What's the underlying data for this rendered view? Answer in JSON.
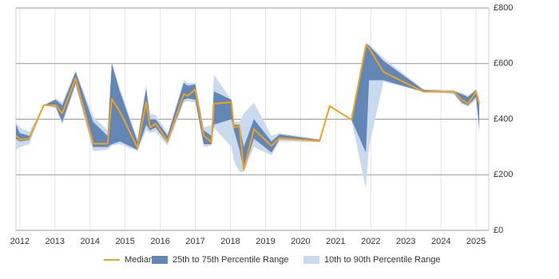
{
  "chart_data": {
    "type": "line-range",
    "x": [
      2011.89,
      2012.0,
      2012.27,
      2012.68,
      2013.02,
      2013.21,
      2013.59,
      2014.09,
      2014.5,
      2014.62,
      2014.85,
      2015.35,
      2015.6,
      2015.71,
      2015.87,
      2016.21,
      2016.67,
      2016.78,
      2017.0,
      2017.24,
      2017.46,
      2017.53,
      2018.03,
      2018.1,
      2018.26,
      2018.38,
      2018.67,
      2019.17,
      2019.4,
      2020.54,
      2020.83,
      2021.45,
      2021.86,
      2021.95,
      2022.36,
      2023.5,
      2024.36,
      2024.59,
      2024.77,
      2025.0,
      2025.09
    ],
    "series": [
      {
        "name": "Median",
        "color": "#f5a01a",
        "values": [
          341,
          327,
          330,
          450,
          450,
          421,
          547,
          312,
          312,
          473,
          427,
          298,
          461,
          370,
          384,
          321,
          490,
          484,
          507,
          341,
          318,
          456,
          461,
          370,
          375,
          218,
          364,
          304,
          332,
          321,
          447,
          398,
          665,
          656,
          570,
          499,
          499,
          470,
          456,
          499,
          456
        ]
      },
      {
        "name": "25th to 75th Percentile Range",
        "color": "#6286b6",
        "low": [
          330,
          320,
          325,
          450,
          445,
          390,
          530,
          300,
          300,
          310,
          320,
          290,
          380,
          360,
          370,
          315,
          470,
          475,
          470,
          310,
          310,
          380,
          400,
          360,
          290,
          215,
          330,
          280,
          328,
          320,
          447,
          398,
          280,
          540,
          540,
          499,
          495,
          460,
          450,
          480,
          370
        ],
        "high": [
          380,
          350,
          340,
          450,
          470,
          450,
          570,
          390,
          340,
          600,
          500,
          320,
          510,
          400,
          400,
          340,
          530,
          520,
          525,
          360,
          340,
          500,
          470,
          380,
          380,
          300,
          400,
          320,
          345,
          325,
          447,
          398,
          670,
          665,
          610,
          505,
          500,
          490,
          480,
          505,
          460
        ]
      },
      {
        "name": "10th to 90th Percentile Range",
        "color": "#c9daef",
        "low": [
          290,
          300,
          310,
          450,
          440,
          380,
          520,
          285,
          290,
          305,
          310,
          285,
          360,
          350,
          355,
          305,
          460,
          465,
          460,
          300,
          305,
          370,
          300,
          250,
          210,
          210,
          300,
          270,
          320,
          318,
          447,
          398,
          150,
          300,
          535,
          498,
          490,
          455,
          445,
          470,
          340
        ],
        "high": [
          390,
          370,
          355,
          450,
          475,
          460,
          575,
          410,
          360,
          605,
          510,
          330,
          525,
          420,
          415,
          350,
          540,
          530,
          530,
          370,
          380,
          560,
          470,
          390,
          390,
          420,
          460,
          340,
          350,
          328,
          447,
          398,
          675,
          670,
          620,
          508,
          505,
          495,
          485,
          510,
          470
        ]
      }
    ],
    "xlim": [
      2011.89,
      2025.36
    ],
    "xticks": [
      2012,
      2013,
      2014,
      2015,
      2016,
      2017,
      2018,
      2019,
      2020,
      2021,
      2022,
      2023,
      2024,
      2025
    ],
    "ylim": [
      0,
      800
    ],
    "yticks": [
      {
        "value": 0,
        "label": "£0"
      },
      {
        "value": 200,
        "label": "£200"
      },
      {
        "value": 400,
        "label": "£400"
      },
      {
        "value": 600,
        "label": "£600"
      },
      {
        "value": 800,
        "label": "£800"
      }
    ],
    "grid": true,
    "legend": "bottom"
  }
}
